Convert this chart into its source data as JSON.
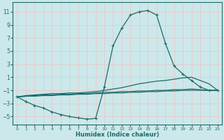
{
  "xlabel": "Humidex (Indice chaleur)",
  "bg_color": "#cce8ea",
  "grid_color": "#e8c8c8",
  "line_color": "#1a6b6b",
  "xlim": [
    -0.5,
    23.5
  ],
  "ylim": [
    -6.2,
    12.5
  ],
  "yticks": [
    -5,
    -3,
    -1,
    1,
    3,
    5,
    7,
    9,
    11
  ],
  "xticks": [
    0,
    1,
    2,
    3,
    4,
    5,
    6,
    7,
    8,
    9,
    10,
    11,
    12,
    13,
    14,
    15,
    16,
    17,
    18,
    19,
    20,
    21,
    22,
    23
  ],
  "main_curve": {
    "x": [
      0,
      1,
      2,
      3,
      4,
      5,
      6,
      7,
      8,
      9,
      10,
      11,
      12,
      13,
      14,
      15,
      16,
      17,
      18,
      19,
      20,
      21,
      22,
      23
    ],
    "y": [
      -2.0,
      -2.7,
      -3.3,
      -3.7,
      -4.3,
      -4.7,
      -5.0,
      -5.2,
      -5.4,
      -5.3,
      -0.5,
      5.8,
      8.5,
      10.5,
      11.0,
      11.2,
      10.5,
      6.2,
      2.7,
      1.5,
      0.5,
      -0.5,
      -1.0,
      -1.0
    ]
  },
  "flat_lines": [
    [
      -2.0,
      -1.9,
      -1.9,
      -1.8,
      -1.8,
      -1.7,
      -1.7,
      -1.6,
      -1.6,
      -1.5,
      -1.5,
      -1.4,
      -1.4,
      -1.3,
      -1.3,
      -1.2,
      -1.2,
      -1.1,
      -1.1,
      -1.0,
      -1.0,
      -1.0,
      -1.0,
      -1.0
    ],
    [
      -2.0,
      -1.9,
      -1.8,
      -1.7,
      -1.7,
      -1.6,
      -1.6,
      -1.5,
      -1.5,
      -1.4,
      -1.3,
      -1.3,
      -1.2,
      -1.2,
      -1.1,
      -1.1,
      -1.0,
      -1.0,
      -0.9,
      -0.9,
      -0.8,
      -0.9,
      -1.0,
      -1.0
    ],
    [
      -2.0,
      -1.8,
      -1.7,
      -1.6,
      -1.5,
      -1.5,
      -1.4,
      -1.4,
      -1.3,
      -1.2,
      -1.0,
      -0.8,
      -0.6,
      -0.3,
      0.0,
      0.2,
      0.4,
      0.5,
      0.7,
      0.9,
      1.0,
      0.5,
      0.0,
      -1.0
    ]
  ]
}
